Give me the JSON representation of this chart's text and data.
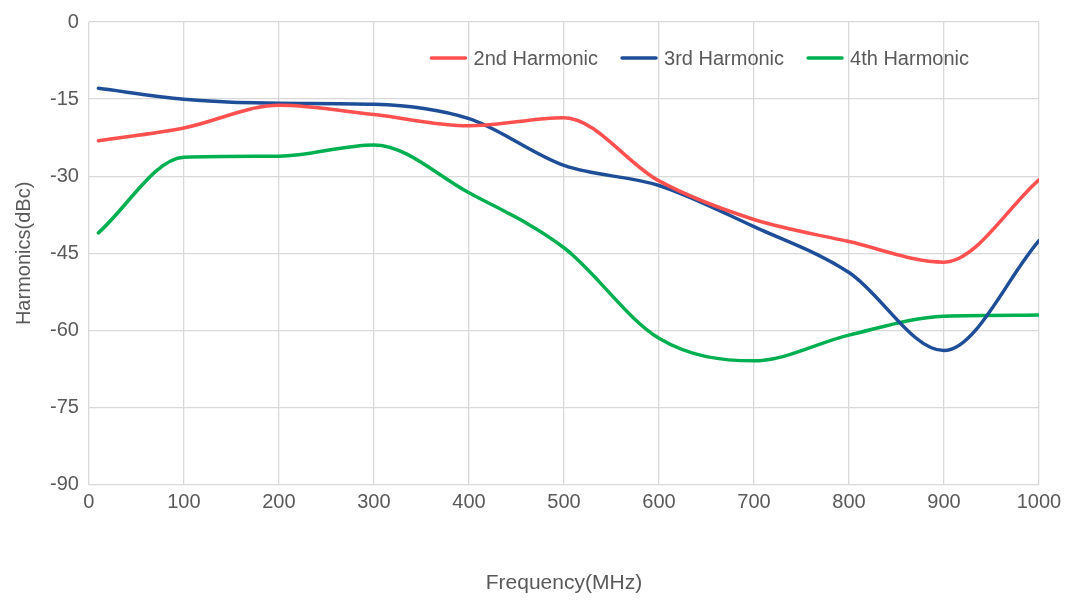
{
  "chart_data": {
    "type": "line",
    "xlabel": "Frequency(MHz)",
    "ylabel": "Harmonics(dBc)",
    "x": [
      10,
      100,
      200,
      300,
      400,
      500,
      600,
      700,
      800,
      900,
      1000
    ],
    "series": [
      {
        "name": "2nd Harmonic",
        "color": "#ff5050",
        "values": [
          -23.1,
          -20.6,
          -16.2,
          -18,
          -20.2,
          -18.6,
          -30.9,
          -38.4,
          -42.7,
          -46.7,
          -30.7
        ]
      },
      {
        "name": "3rd Harmonic",
        "color": "#1f4e99",
        "values": [
          -12.9,
          -15,
          -15.8,
          -16,
          -18.8,
          -27.9,
          -31.8,
          -39.8,
          -48.7,
          -63.9,
          -42.5
        ]
      },
      {
        "name": "4th Harmonic",
        "color": "#00b050",
        "values": [
          -41,
          -26.3,
          -26.1,
          -23.9,
          -33.2,
          -43.9,
          -61.5,
          -65.9,
          -60.9,
          -57.2,
          -57
        ]
      }
    ],
    "xlim": [
      0,
      1000
    ],
    "xticks": [
      0,
      100,
      200,
      300,
      400,
      500,
      600,
      700,
      800,
      900,
      1000
    ],
    "ylim": [
      -90,
      0
    ],
    "yticks": [
      -90,
      -75,
      -60,
      -45,
      -30,
      -15,
      0
    ],
    "grid": true,
    "legend": "top right",
    "marker": "none",
    "line_style": "solid"
  }
}
